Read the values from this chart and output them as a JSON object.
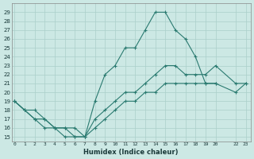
{
  "xlabel": "Humidex (Indice chaleur)",
  "ylabel": "",
  "bg_color": "#cce8e4",
  "grid_color": "#aacfca",
  "line_color": "#2a7a70",
  "line1_x": [
    0,
    1,
    2,
    3,
    4,
    5,
    6,
    7,
    8,
    9,
    10,
    11,
    12,
    13,
    14,
    15,
    16,
    17,
    18,
    19,
    20
  ],
  "line1_y": [
    19,
    18,
    18,
    17,
    16,
    16,
    15,
    15,
    19,
    22,
    23,
    25,
    25,
    27,
    29,
    29,
    27,
    26,
    24,
    21,
    21
  ],
  "line2_x": [
    0,
    1,
    2,
    3,
    4,
    5,
    6,
    7,
    8,
    9,
    10,
    11,
    12,
    13,
    14,
    15,
    16,
    17,
    18,
    19,
    20,
    22,
    23
  ],
  "line2_y": [
    19,
    18,
    17,
    17,
    16,
    16,
    16,
    15,
    17,
    18,
    19,
    20,
    20,
    21,
    22,
    23,
    23,
    22,
    22,
    22,
    23,
    21,
    21
  ],
  "line3_x": [
    0,
    1,
    2,
    3,
    4,
    5,
    6,
    7,
    8,
    9,
    10,
    11,
    12,
    13,
    14,
    15,
    16,
    17,
    18,
    19,
    20,
    22,
    23
  ],
  "line3_y": [
    19,
    18,
    17,
    16,
    16,
    15,
    15,
    15,
    16,
    17,
    18,
    19,
    19,
    20,
    20,
    21,
    21,
    21,
    21,
    21,
    21,
    20,
    21
  ],
  "yticks": [
    15,
    16,
    17,
    18,
    19,
    20,
    21,
    22,
    23,
    24,
    25,
    26,
    27,
    28,
    29
  ],
  "xtick_positions": [
    0,
    1,
    2,
    3,
    4,
    5,
    6,
    7,
    8,
    9,
    10,
    11,
    12,
    13,
    14,
    15,
    16,
    17,
    18,
    19,
    20,
    22,
    23
  ],
  "xtick_labels": [
    "0",
    "1",
    "2",
    "3",
    "4",
    "5",
    "6",
    "7",
    "8",
    "9",
    "10",
    "11",
    "12",
    "13",
    "14",
    "15",
    "16",
    "17",
    "18",
    "19",
    "20",
    "22",
    "23"
  ],
  "xlim": [
    -0.3,
    23.5
  ],
  "ylim": [
    14.5,
    30.0
  ]
}
